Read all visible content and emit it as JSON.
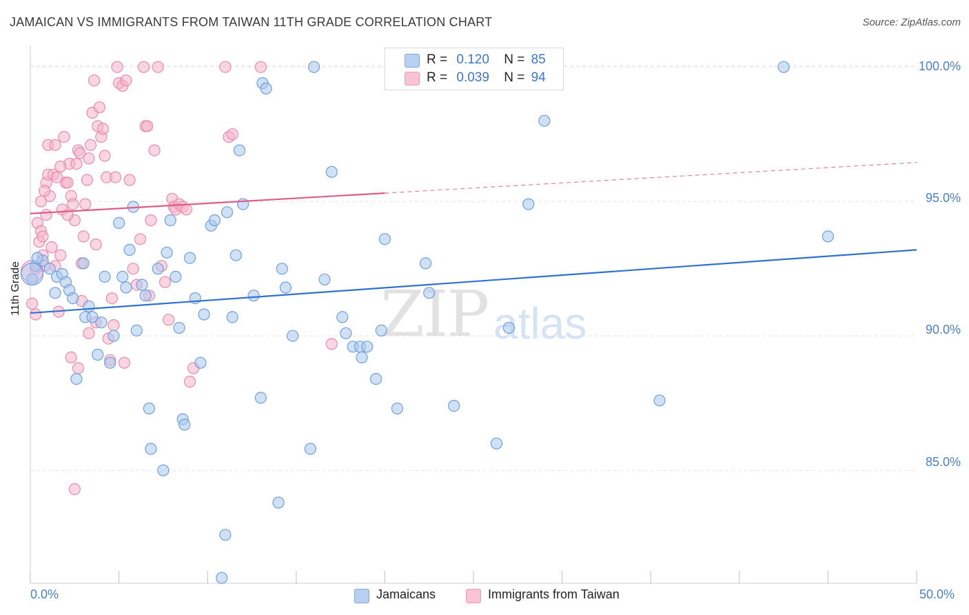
{
  "title": "JAMAICAN VS IMMIGRANTS FROM TAIWAN 11TH GRADE CORRELATION CHART",
  "source": "Source: ZipAtlas.com",
  "watermark": {
    "zip": "ZIP",
    "atlas": "atlas"
  },
  "legend": {
    "r_label": "R =",
    "n_label": "N =",
    "rows": [
      {
        "r": "0.120",
        "n": "85"
      },
      {
        "r": "0.039",
        "n": "94"
      }
    ]
  },
  "colors": {
    "blue_fill": "#a9c8ef",
    "blue_stroke": "#6f9fdc",
    "blue_line": "#2f72cc",
    "pink_fill": "#f6b5ca",
    "pink_stroke": "#ea8aab",
    "pink_line": "#e05c88",
    "grid": "#e4e4e4",
    "tick_text": "#4a7fd0"
  },
  "chart_data": {
    "type": "scatter",
    "title": "JAMAICAN VS IMMIGRANTS FROM TAIWAN 11TH GRADE CORRELATION CHART",
    "xlabel": "",
    "ylabel": "11th Grade",
    "xlim": [
      0,
      50
    ],
    "ylim": [
      80.8,
      100.8
    ],
    "x_tick_labels": [
      "0.0%",
      "50.0%"
    ],
    "y_ticks": [
      85,
      90,
      95,
      100
    ],
    "y_tick_labels": [
      "85.0%",
      "90.0%",
      "95.0%",
      "100.0%"
    ],
    "grid": true,
    "legend_position": "bottom-center",
    "series": [
      {
        "name": "Jamaicans",
        "trend": {
          "x": [
            0,
            50
          ],
          "y": [
            90.85,
            93.2
          ],
          "dashed_from": null
        },
        "points": [
          [
            0.1,
            92.1
          ],
          [
            0.3,
            92.6
          ],
          [
            0.7,
            92.8
          ],
          [
            1.1,
            92.5
          ],
          [
            1.4,
            91.6
          ],
          [
            1.5,
            92.2
          ],
          [
            1.8,
            92.3
          ],
          [
            2.0,
            92.0
          ],
          [
            2.2,
            91.7
          ],
          [
            2.4,
            91.4
          ],
          [
            3.0,
            92.7
          ],
          [
            3.1,
            90.7
          ],
          [
            2.6,
            88.4
          ],
          [
            3.3,
            91.1
          ],
          [
            3.5,
            90.7
          ],
          [
            3.8,
            89.3
          ],
          [
            4.0,
            90.5
          ],
          [
            4.2,
            92.2
          ],
          [
            4.5,
            89.0
          ],
          [
            4.7,
            90.0
          ],
          [
            5.0,
            94.2
          ],
          [
            5.2,
            92.2
          ],
          [
            5.4,
            91.8
          ],
          [
            5.6,
            93.2
          ],
          [
            5.8,
            94.8
          ],
          [
            6.0,
            90.2
          ],
          [
            6.3,
            91.9
          ],
          [
            6.5,
            91.5
          ],
          [
            6.7,
            87.3
          ],
          [
            6.8,
            85.8
          ],
          [
            7.2,
            92.5
          ],
          [
            7.5,
            85.0
          ],
          [
            7.7,
            93.1
          ],
          [
            7.9,
            94.3
          ],
          [
            8.2,
            92.2
          ],
          [
            8.4,
            90.3
          ],
          [
            8.6,
            86.9
          ],
          [
            8.7,
            86.7
          ],
          [
            9.0,
            92.9
          ],
          [
            9.3,
            91.4
          ],
          [
            9.6,
            89.0
          ],
          [
            9.8,
            90.8
          ],
          [
            10.2,
            94.1
          ],
          [
            10.4,
            94.3
          ],
          [
            10.8,
            81.0
          ],
          [
            11.0,
            82.6
          ],
          [
            11.1,
            94.6
          ],
          [
            11.4,
            90.7
          ],
          [
            11.6,
            93.0
          ],
          [
            11.8,
            96.9
          ],
          [
            12.0,
            94.9
          ],
          [
            12.6,
            91.5
          ],
          [
            13.0,
            87.7
          ],
          [
            13.1,
            99.4
          ],
          [
            13.3,
            99.2
          ],
          [
            14.0,
            83.8
          ],
          [
            14.2,
            92.5
          ],
          [
            14.4,
            91.8
          ],
          [
            14.8,
            90.0
          ],
          [
            15.8,
            85.8
          ],
          [
            16.0,
            100.0
          ],
          [
            16.6,
            92.1
          ],
          [
            17.0,
            96.1
          ],
          [
            17.6,
            90.7
          ],
          [
            17.8,
            90.1
          ],
          [
            18.2,
            89.6
          ],
          [
            18.6,
            89.6
          ],
          [
            18.7,
            89.2
          ],
          [
            19.0,
            89.6
          ],
          [
            19.5,
            88.4
          ],
          [
            19.8,
            90.2
          ],
          [
            20.0,
            93.6
          ],
          [
            20.7,
            87.3
          ],
          [
            22.3,
            92.7
          ],
          [
            22.5,
            91.6
          ],
          [
            23.9,
            87.4
          ],
          [
            26.3,
            86.0
          ],
          [
            27.0,
            90.3
          ],
          [
            27.2,
            100.0
          ],
          [
            28.1,
            94.9
          ],
          [
            29.0,
            98.0
          ],
          [
            35.5,
            87.6
          ],
          [
            42.5,
            100.0
          ],
          [
            45.0,
            93.7
          ],
          [
            0.4,
            92.9
          ]
        ],
        "large_points": [
          [
            0.1,
            92.3
          ]
        ]
      },
      {
        "name": "Immigrants from Taiwan",
        "trend": {
          "x": [
            0,
            50
          ],
          "y": [
            94.55,
            96.45
          ],
          "dashed_from": 20.0
        },
        "points": [
          [
            0.1,
            91.2
          ],
          [
            0.3,
            90.8
          ],
          [
            0.3,
            92.5
          ],
          [
            0.4,
            94.2
          ],
          [
            0.5,
            93.5
          ],
          [
            0.6,
            93.9
          ],
          [
            0.7,
            93.7
          ],
          [
            0.8,
            92.6
          ],
          [
            0.9,
            95.7
          ],
          [
            1.0,
            96.0
          ],
          [
            1.0,
            97.1
          ],
          [
            1.1,
            95.2
          ],
          [
            1.2,
            93.3
          ],
          [
            1.3,
            96.0
          ],
          [
            1.4,
            97.1
          ],
          [
            1.5,
            95.9
          ],
          [
            1.6,
            90.9
          ],
          [
            1.7,
            93.0
          ],
          [
            1.8,
            94.7
          ],
          [
            1.9,
            97.4
          ],
          [
            2.0,
            95.7
          ],
          [
            2.1,
            95.7
          ],
          [
            2.2,
            96.4
          ],
          [
            2.3,
            95.2
          ],
          [
            2.4,
            94.9
          ],
          [
            2.5,
            94.3
          ],
          [
            2.6,
            96.4
          ],
          [
            2.7,
            96.9
          ],
          [
            2.8,
            96.8
          ],
          [
            2.9,
            92.7
          ],
          [
            3.0,
            93.7
          ],
          [
            3.1,
            94.9
          ],
          [
            3.2,
            95.8
          ],
          [
            3.3,
            96.6
          ],
          [
            3.4,
            97.1
          ],
          [
            3.5,
            98.3
          ],
          [
            3.6,
            99.5
          ],
          [
            3.7,
            93.4
          ],
          [
            3.8,
            97.8
          ],
          [
            3.9,
            98.5
          ],
          [
            4.0,
            97.4
          ],
          [
            4.1,
            97.7
          ],
          [
            4.2,
            96.7
          ],
          [
            4.3,
            95.9
          ],
          [
            4.4,
            89.9
          ],
          [
            4.5,
            89.1
          ],
          [
            4.6,
            91.4
          ],
          [
            4.7,
            90.4
          ],
          [
            4.8,
            95.9
          ],
          [
            5.0,
            99.4
          ],
          [
            5.2,
            99.3
          ],
          [
            5.4,
            99.5
          ],
          [
            5.6,
            95.8
          ],
          [
            5.8,
            92.5
          ],
          [
            6.0,
            91.9
          ],
          [
            6.2,
            93.6
          ],
          [
            6.4,
            100.0
          ],
          [
            6.5,
            97.8
          ],
          [
            6.6,
            97.8
          ],
          [
            6.8,
            94.3
          ],
          [
            7.0,
            96.9
          ],
          [
            7.2,
            100.0
          ],
          [
            7.4,
            92.6
          ],
          [
            7.6,
            92.0
          ],
          [
            7.8,
            90.6
          ],
          [
            8.0,
            95.1
          ],
          [
            8.1,
            94.8
          ],
          [
            8.2,
            94.7
          ],
          [
            8.4,
            94.9
          ],
          [
            8.6,
            94.8
          ],
          [
            9.0,
            88.3
          ],
          [
            9.2,
            88.8
          ],
          [
            11.0,
            100.0
          ],
          [
            11.2,
            97.4
          ],
          [
            11.4,
            97.5
          ],
          [
            13.0,
            100.0
          ],
          [
            17.0,
            89.7
          ],
          [
            2.5,
            84.3
          ],
          [
            0.8,
            95.4
          ],
          [
            1.4,
            92.6
          ],
          [
            2.3,
            89.2
          ],
          [
            2.7,
            88.8
          ],
          [
            2.9,
            91.3
          ],
          [
            3.3,
            90.1
          ],
          [
            3.7,
            90.5
          ],
          [
            0.6,
            95.0
          ],
          [
            0.9,
            94.5
          ],
          [
            1.7,
            96.3
          ],
          [
            2.1,
            94.5
          ],
          [
            0.7,
            93.0
          ],
          [
            5.3,
            89.0
          ],
          [
            6.7,
            91.5
          ],
          [
            8.8,
            94.7
          ],
          [
            4.9,
            100.0
          ]
        ],
        "large_points": [
          [
            0.1,
            92.4
          ]
        ]
      }
    ]
  }
}
